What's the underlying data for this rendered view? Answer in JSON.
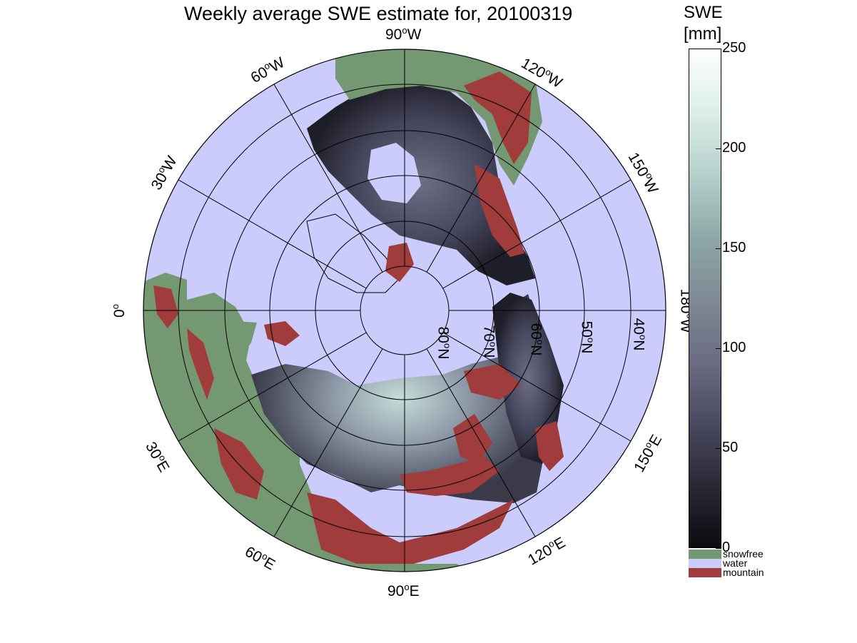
{
  "title": "Weekly average SWE estimate for, 20100319",
  "colorbar": {
    "title_line1": "SWE",
    "title_line2": "[mm]",
    "ticks": [
      "250",
      "200",
      "150",
      "100",
      "50",
      "0"
    ],
    "range": [
      0,
      250
    ],
    "gradient_colors": [
      "#0a0a0e",
      "#2a2a36",
      "#4a4a60",
      "#6c6c82",
      "#7e8a95",
      "#8fa9a8",
      "#b6d0cc",
      "#dceee9",
      "#ffffff"
    ]
  },
  "legend": {
    "items": [
      {
        "label": "snowfree",
        "color": "#739872"
      },
      {
        "label": "water",
        "color": "#ccccfc"
      },
      {
        "label": "mountain",
        "color": "#a03c3c"
      }
    ]
  },
  "map": {
    "projection": "north polar stereographic",
    "ocean_color": "#ccccfc",
    "longitude_labels": [
      "90°W",
      "60°W",
      "30°W",
      "0°",
      "30°E",
      "60°E",
      "90°E",
      "120°E",
      "150°E",
      "180°W",
      "150°W",
      "120°W"
    ],
    "latitude_labels": [
      "80°N",
      "70°N",
      "60°N",
      "50°N",
      "40°N"
    ],
    "lon_labels": {
      "w90": {
        "num": "90",
        "hemi": "W"
      },
      "w60": {
        "num": "60",
        "hemi": "W"
      },
      "w30": {
        "num": "30",
        "hemi": "W"
      },
      "zero": {
        "num": "0",
        "hemi": ""
      },
      "e30": {
        "num": "30",
        "hemi": "E"
      },
      "e60": {
        "num": "60",
        "hemi": "E"
      },
      "e90": {
        "num": "90",
        "hemi": "E"
      },
      "e120": {
        "num": "120",
        "hemi": "E"
      },
      "e150": {
        "num": "150",
        "hemi": "E"
      },
      "w180": {
        "num": "180",
        "hemi": "W"
      },
      "w150": {
        "num": "150",
        "hemi": "W"
      },
      "w120": {
        "num": "120",
        "hemi": "W"
      }
    },
    "lat_labels": {
      "n80": {
        "num": "80",
        "hemi": "N"
      },
      "n70": {
        "num": "70",
        "hemi": "N"
      },
      "n60": {
        "num": "60",
        "hemi": "N"
      },
      "n50": {
        "num": "50",
        "hemi": "N"
      },
      "n40": {
        "num": "40",
        "hemi": "N"
      }
    }
  }
}
